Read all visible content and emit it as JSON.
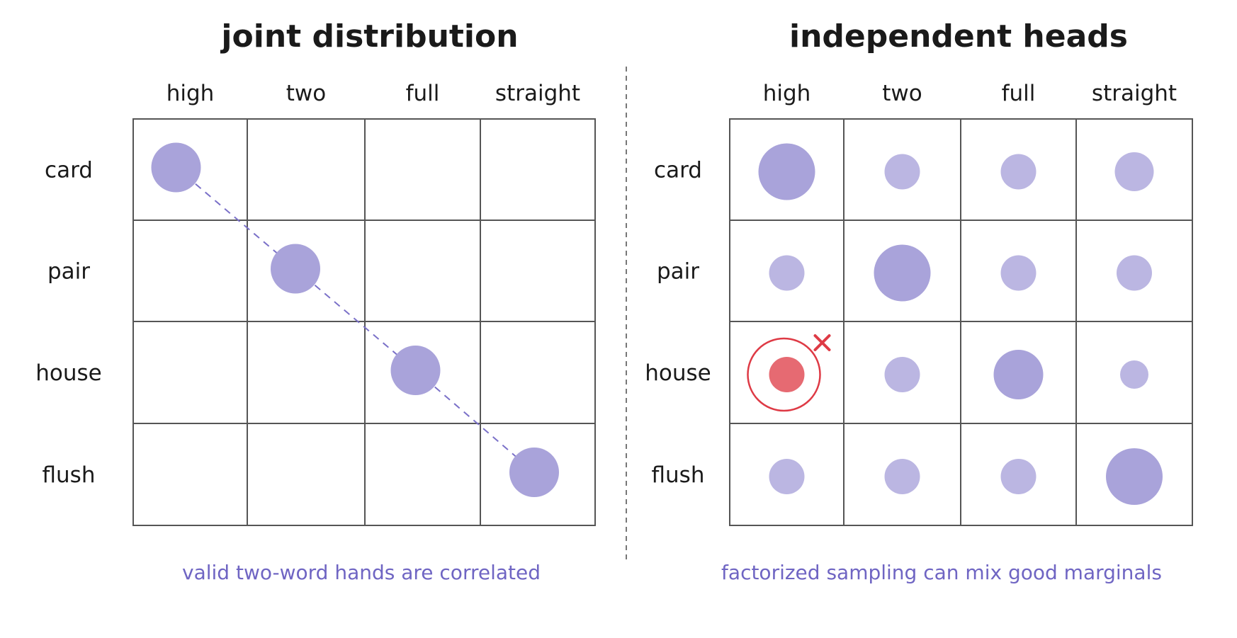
{
  "colors": {
    "dot": "#a9a3da",
    "dot_light": "#bbb6e2",
    "highlight": "#e35a63",
    "ring": "#de3a45",
    "caption": "#6f65c3",
    "diagonal": "#7a70c8"
  },
  "columns": [
    "high",
    "two",
    "full",
    "straight"
  ],
  "rows": [
    "card",
    "pair",
    "house",
    "flush"
  ],
  "left": {
    "title": "joint distribution",
    "caption": "valid two-word hands are correlated",
    "cells": [
      [
        1,
        0,
        0,
        0
      ],
      [
        0,
        1,
        0,
        0
      ],
      [
        0,
        0,
        1,
        0
      ],
      [
        0,
        0,
        0,
        1
      ]
    ]
  },
  "right": {
    "title": "independent heads",
    "caption": "factorized sampling can mix good marginals",
    "cells": [
      [
        0.8,
        0.5,
        0.5,
        0.55
      ],
      [
        0.5,
        0.8,
        0.5,
        0.5
      ],
      [
        0.5,
        0.5,
        0.7,
        0.4
      ],
      [
        0.5,
        0.5,
        0.5,
        0.8
      ]
    ],
    "invalid_cell": {
      "row": "house",
      "column": "high",
      "mark": "invalid-combination-x-icon"
    }
  }
}
